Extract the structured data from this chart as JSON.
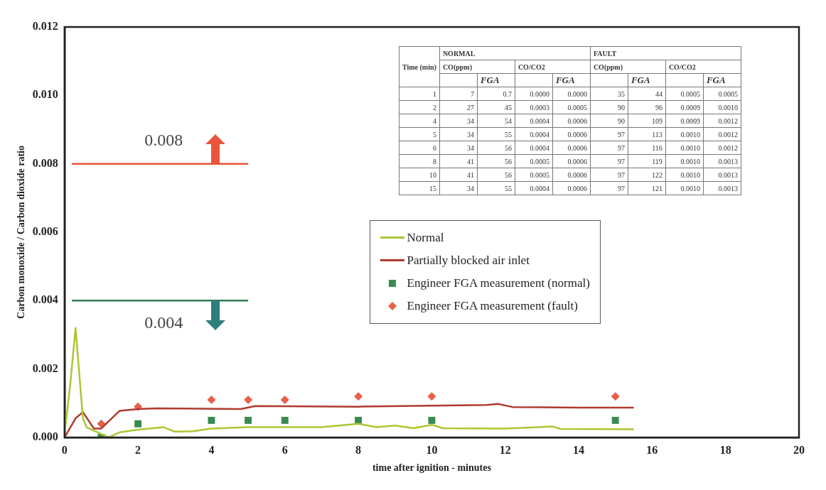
{
  "chart_data": [
    {
      "type": "line",
      "xlabel": "time after ignition - minutes",
      "ylabel": "Carbon monoxide / Carbon dioxide ratio",
      "xlim": [
        0,
        20
      ],
      "xticks": [
        0,
        2,
        4,
        6,
        8,
        10,
        12,
        14,
        16,
        18,
        20
      ],
      "ylim": [
        0,
        0.012
      ],
      "yticks": [
        {
          "value": 0,
          "label": "0.000"
        },
        0.002,
        0.004,
        0.006,
        0.008,
        {
          "value": 0.01,
          "label": "0.010"
        },
        {
          "value": 0.012,
          "label": "0.012"
        }
      ],
      "grid": false,
      "legend": "right",
      "series": [
        {
          "name": "Normal",
          "type": "line",
          "color": "#a8c832",
          "marker": "none",
          "x": [
            0,
            0.15,
            0.3,
            0.5,
            0.6,
            1.0,
            1.2,
            1.5,
            2,
            2.7,
            3,
            3.5,
            4,
            5,
            6,
            7,
            8,
            8.5,
            9,
            9.5,
            10,
            10.3,
            12,
            13.3,
            13.5,
            15.5
          ],
          "values": [
            0.0001,
            0.0015,
            0.0032,
            0.00056,
            0.0003,
            0.0001,
            0.0,
            0.00015,
            0.00023,
            0.0003,
            0.00017,
            0.00018,
            0.00026,
            0.0003,
            0.0003,
            0.0003,
            0.0004,
            0.0003,
            0.00035,
            0.00027,
            0.00037,
            0.00027,
            0.00026,
            0.00032,
            0.00025,
            0.00024
          ]
        },
        {
          "name": "Partially blocked air inlet",
          "type": "line",
          "color": "#b03a2e",
          "marker": "none",
          "x": [
            0,
            0.3,
            0.5,
            0.8,
            1.0,
            1.5,
            2,
            2.5,
            4.8,
            5.2,
            8,
            11.5,
            11.8,
            12.2,
            14,
            15.5
          ],
          "values": [
            0,
            0.00056,
            0.00074,
            0.00026,
            0.00026,
            0.00078,
            0.00083,
            0.00085,
            0.00083,
            0.00092,
            0.0009,
            0.00095,
            0.00098,
            0.00089,
            0.00087,
            0.00087
          ]
        },
        {
          "name": "Engineer FGA measurement (normal)",
          "type": "scatter",
          "color": "#3a8a50",
          "marker": "square",
          "x": [
            1,
            2,
            4,
            5,
            6,
            8,
            10,
            15
          ],
          "values": [
            0,
            0.0004,
            0.0005,
            0.0005,
            0.0005,
            0.0005,
            0.0005,
            0.0005
          ]
        },
        {
          "name": "Engineer FGA measurement (fault)",
          "type": "scatter",
          "color": "#e8604a",
          "marker": "diamond",
          "x": [
            1,
            2,
            4,
            5,
            6,
            8,
            10,
            15
          ],
          "values": [
            0.0004,
            0.0009,
            0.0011,
            0.0011,
            0.0011,
            0.0012,
            0.0012,
            0.0012
          ]
        }
      ],
      "ref_lines": [
        {
          "axis": "y",
          "value": 0.008,
          "label": "0.008",
          "color": "#e8553a"
        },
        {
          "axis": "y",
          "value": 0.004,
          "label": "0.004",
          "color": "#2e7d4f"
        }
      ]
    },
    {
      "type": "other",
      "ylabel": "Time (min)",
      "annotations": [
        "NORMAL",
        "FAULT",
        "CO(ppm)",
        "CO/CO2",
        "CO(ppm)",
        "CO/CO2"
      ],
      "categories": [
        null,
        "FGA",
        null,
        "FGA",
        null,
        "FGA",
        null,
        "FGA"
      ],
      "y_categories": [
        "1",
        "2",
        "4",
        "5",
        "6",
        "8",
        "10",
        "15"
      ],
      "cell_labels": [
        [
          "7",
          "0.7",
          "0.0000",
          "0.0000",
          "35",
          "44",
          "0.0005",
          "0.0005"
        ],
        [
          "27",
          "45",
          "0.0003",
          "0.0005",
          "90",
          "96",
          "0.0009",
          "0.0010"
        ],
        [
          "34",
          "54",
          "0.0004",
          "0.0006",
          "90",
          "109",
          "0.0009",
          "0.0012"
        ],
        [
          "34",
          "55",
          "0.0004",
          "0.0006",
          "97",
          "113",
          "0.0010",
          "0.0012"
        ],
        [
          "34",
          "56",
          "0.0004",
          "0.0006",
          "97",
          "116",
          "0.0010",
          "0.0012"
        ],
        [
          "41",
          "56",
          "0.0005",
          "0.0006",
          "97",
          "119",
          "0.0010",
          "0.0013"
        ],
        [
          "41",
          "56",
          "0.0005",
          "0.0006",
          "97",
          "122",
          "0.0010",
          "0.0013"
        ],
        [
          "34",
          "55",
          "0.0004",
          "0.0006",
          "97",
          "121",
          "0.0010",
          "0.0013"
        ]
      ]
    }
  ]
}
